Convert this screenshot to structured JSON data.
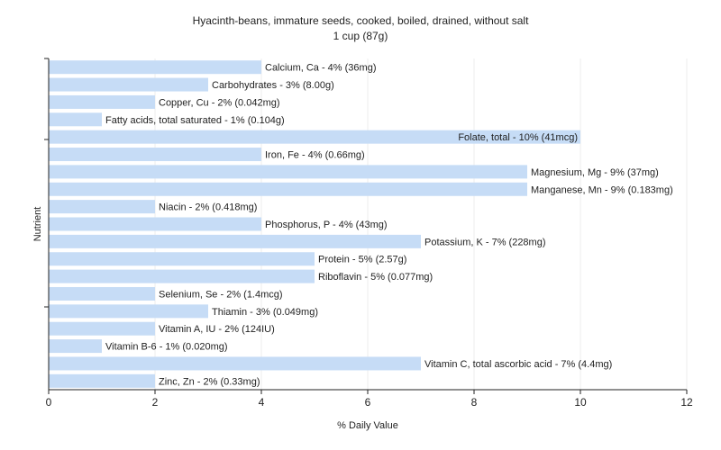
{
  "chart_data": {
    "type": "bar",
    "orientation": "horizontal",
    "title": "Hyacinth-beans, immature seeds, cooked, boiled, drained, without salt",
    "subtitle": "1 cup (87g)",
    "xlabel": "% Daily Value",
    "ylabel": "Nutrient",
    "xlim": [
      0,
      12
    ],
    "xticks": [
      "0",
      "2",
      "4",
      "6",
      "8",
      "10",
      "12"
    ],
    "grid": true,
    "bar_color": "#c6dcf6",
    "categories": [
      "Calcium, Ca",
      "Carbohydrates",
      "Copper, Cu",
      "Fatty acids, total saturated",
      "Folate, total",
      "Iron, Fe",
      "Magnesium, Mg",
      "Manganese, Mn",
      "Niacin",
      "Phosphorus, P",
      "Potassium, K",
      "Protein",
      "Riboflavin",
      "Selenium, Se",
      "Thiamin",
      "Vitamin A, IU",
      "Vitamin B-6",
      "Vitamin C, total ascorbic acid",
      "Zinc, Zn"
    ],
    "values": [
      4,
      3,
      2,
      1,
      10,
      4,
      9,
      9,
      2,
      4,
      7,
      5,
      5,
      2,
      3,
      2,
      1,
      7,
      2
    ],
    "labels": [
      "Calcium, Ca - 4% (36mg)",
      "Carbohydrates - 3% (8.00g)",
      "Copper, Cu - 2% (0.042mg)",
      "Fatty acids, total saturated - 1% (0.104g)",
      "Folate, total - 10% (41mcg)",
      "Iron, Fe - 4% (0.66mg)",
      "Magnesium, Mg - 9% (37mg)",
      "Manganese, Mn - 9% (0.183mg)",
      "Niacin - 2% (0.418mg)",
      "Phosphorus, P - 4% (43mg)",
      "Potassium, K - 7% (228mg)",
      "Protein - 5% (2.57g)",
      "Riboflavin - 5% (0.077mg)",
      "Selenium, Se - 2% (1.4mcg)",
      "Thiamin - 3% (0.049mg)",
      "Vitamin A, IU - 2% (124IU)",
      "Vitamin B-6 - 1% (0.020mg)",
      "Vitamin C, total ascorbic acid - 7% (4.4mg)",
      "Zinc, Zn - 2% (0.33mg)"
    ]
  }
}
